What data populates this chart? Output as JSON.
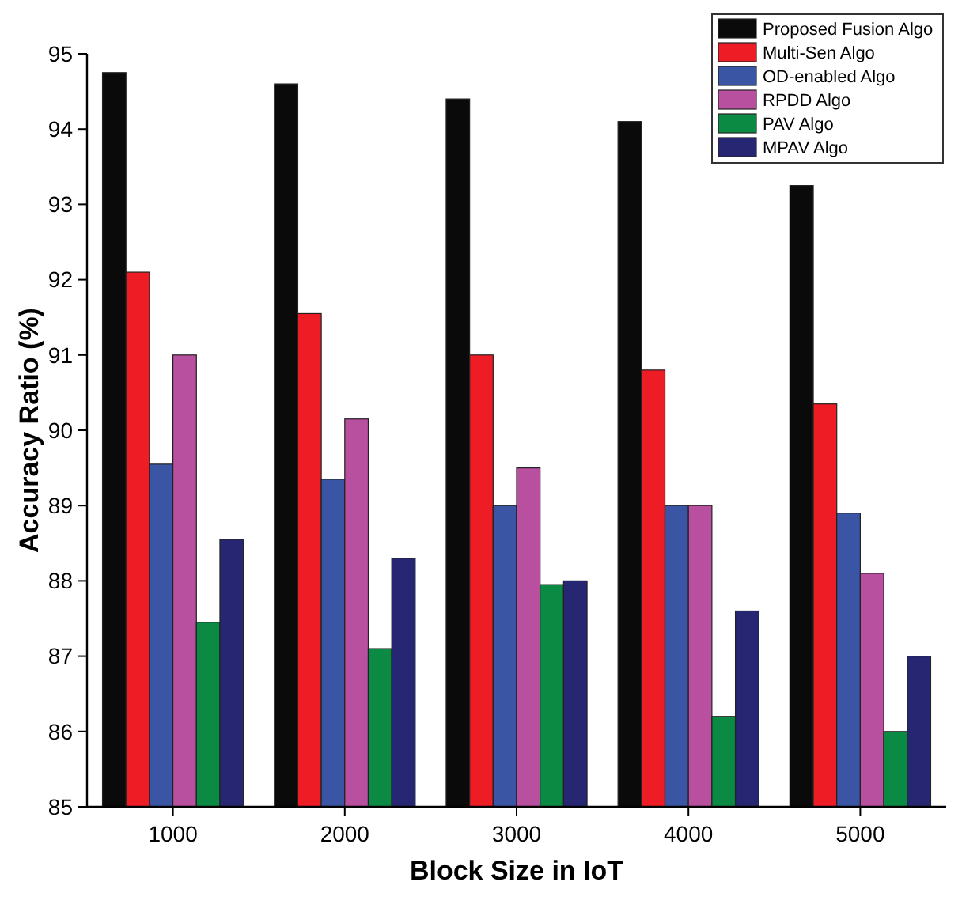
{
  "chart_data": {
    "type": "bar",
    "xlabel": "Block Size in IoT",
    "ylabel": "Accuracy Ratio (%)",
    "categories": [
      "1000",
      "2000",
      "3000",
      "4000",
      "5000"
    ],
    "series": [
      {
        "name": "Proposed Fusion Algo",
        "color": "#0a0a0a",
        "values": [
          94.75,
          94.6,
          94.4,
          94.1,
          93.25
        ]
      },
      {
        "name": "Multi-Sen Algo",
        "color": "#ee1c25",
        "values": [
          92.1,
          91.55,
          91.0,
          90.8,
          90.35
        ]
      },
      {
        "name": "OD-enabled Algo",
        "color": "#3a55a4",
        "values": [
          89.55,
          89.35,
          89.0,
          89.0,
          88.9
        ]
      },
      {
        "name": "RPDD Algo",
        "color": "#b94f9f",
        "values": [
          91.0,
          90.15,
          89.5,
          89.0,
          88.1
        ]
      },
      {
        "name": "PAV Algo",
        "color": "#0b8a44",
        "values": [
          87.45,
          87.1,
          87.95,
          86.2,
          86.0
        ]
      },
      {
        "name": "MPAV Algo",
        "color": "#262673",
        "values": [
          88.55,
          88.3,
          88.0,
          87.6,
          87.0
        ]
      }
    ],
    "ylim": [
      85,
      95
    ],
    "yticks": [
      85,
      86,
      87,
      88,
      89,
      90,
      91,
      92,
      93,
      94,
      95
    ],
    "legend": "top right"
  }
}
